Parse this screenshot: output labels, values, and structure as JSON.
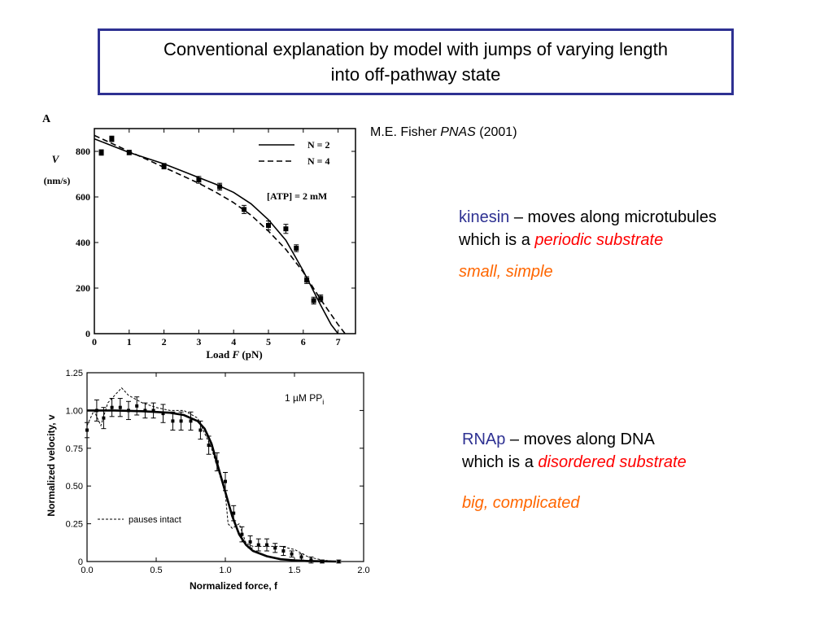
{
  "slide": {
    "title_line1": "Conventional explanation by model with jumps of varying length",
    "title_line2": "into off-pathway state",
    "citation": {
      "author": "M.E. Fisher",
      "journal": "PNAS",
      "year": "(2001)"
    },
    "kinesin": {
      "name": "kinesin",
      "desc1": " – moves along microtubules",
      "desc2_prefix": "which is a ",
      "desc2_highlight": "periodic substrate",
      "size": "small, simple"
    },
    "rnap": {
      "name": "RNAp",
      "desc1": " – moves along DNA",
      "desc2_prefix": "which is a ",
      "desc2_highlight": "disordered substrate",
      "size": "big, complicated"
    },
    "colors": {
      "frame": "#2e3192",
      "highlight": "#ff0000",
      "size_text": "#ff6600"
    }
  },
  "chart_data": [
    {
      "type": "line",
      "panel_label": "A",
      "ylabel_symbol": "V",
      "ylabel_unit": "(nm/s)",
      "xlabel_prefix": "Load ",
      "xlabel_symbol": "F",
      "xlabel_unit": " (pN)",
      "xlim": [
        0,
        7.5
      ],
      "ylim": [
        0,
        900
      ],
      "x_ticks": [
        0,
        1,
        2,
        3,
        4,
        5,
        6,
        7
      ],
      "y_ticks": [
        0,
        200,
        400,
        600,
        800
      ],
      "annotation": "[ATP] = 2 mM",
      "legend_position": "top-right",
      "series": [
        {
          "name": "N = 2",
          "style": "solid",
          "x": [
            0,
            0.5,
            1,
            1.5,
            2,
            2.5,
            3,
            3.5,
            4,
            4.5,
            5,
            5.5,
            5.8,
            6,
            6.2,
            6.5,
            6.8,
            7.0
          ],
          "y": [
            855,
            825,
            795,
            770,
            745,
            715,
            685,
            655,
            620,
            570,
            500,
            410,
            330,
            275,
            215,
            125,
            40,
            0
          ]
        },
        {
          "name": "N = 4",
          "style": "dashed",
          "x": [
            0,
            0.5,
            1,
            1.5,
            2,
            2.5,
            3,
            3.5,
            4,
            4.5,
            5,
            5.5,
            6,
            6.5,
            7.0,
            7.2
          ],
          "y": [
            870,
            835,
            800,
            765,
            730,
            695,
            660,
            620,
            575,
            520,
            450,
            370,
            270,
            150,
            40,
            0
          ]
        },
        {
          "name": "data",
          "style": "points",
          "x": [
            0.2,
            0.5,
            1.0,
            2.0,
            3.0,
            3.6,
            4.3,
            5.0,
            5.5,
            5.8,
            6.1,
            6.3,
            6.5
          ],
          "y": [
            795,
            855,
            795,
            735,
            675,
            645,
            545,
            475,
            460,
            375,
            235,
            145,
            155
          ],
          "err": [
            12,
            12,
            10,
            12,
            15,
            15,
            18,
            20,
            20,
            15,
            15,
            15,
            15
          ]
        }
      ]
    },
    {
      "type": "line",
      "ylabel": "Normalized velocity, v",
      "xlabel": "Normalized force, f",
      "xlim": [
        0,
        2.0
      ],
      "ylim": [
        0,
        1.25
      ],
      "x_ticks": [
        "0.0",
        "0.5",
        "1.0",
        "1.5",
        "2.0"
      ],
      "y_ticks": [
        "0",
        "0.25",
        "0.50",
        "0.75",
        "1.00",
        "1.25"
      ],
      "annotation_main": "1 µM PP",
      "annotation_sub": "i",
      "legend_position": "bottom-left",
      "series": [
        {
          "name": "fit",
          "style": "solid-bold",
          "x": [
            0.0,
            0.2,
            0.4,
            0.6,
            0.7,
            0.8,
            0.85,
            0.9,
            0.95,
            1.0,
            1.05,
            1.1,
            1.15,
            1.2,
            1.3,
            1.4,
            1.5,
            1.6,
            1.8
          ],
          "y": [
            1.0,
            1.0,
            0.995,
            0.985,
            0.97,
            0.93,
            0.88,
            0.78,
            0.62,
            0.46,
            0.3,
            0.18,
            0.11,
            0.07,
            0.035,
            0.015,
            0.008,
            0.003,
            0.0
          ]
        },
        {
          "name": "pauses intact",
          "style": "dashed",
          "x": [
            0.0,
            0.05,
            0.1,
            0.15,
            0.2,
            0.25,
            0.3,
            0.4,
            0.5,
            0.6,
            0.7,
            0.8,
            0.85,
            0.9,
            0.95,
            1.0,
            1.02,
            1.05,
            1.1,
            1.15,
            1.2,
            1.3,
            1.4,
            1.5,
            1.6,
            1.7,
            1.8
          ],
          "y": [
            0.9,
            1.0,
            0.9,
            1.05,
            1.1,
            1.15,
            1.1,
            1.05,
            1.02,
            1.0,
            1.0,
            0.95,
            0.85,
            0.75,
            0.6,
            0.45,
            0.25,
            0.22,
            0.25,
            0.12,
            0.1,
            0.1,
            0.1,
            0.08,
            0.03,
            0.01,
            0.0
          ]
        },
        {
          "name": "data",
          "style": "points",
          "x": [
            0.0,
            0.07,
            0.12,
            0.18,
            0.24,
            0.3,
            0.36,
            0.42,
            0.48,
            0.55,
            0.62,
            0.68,
            0.75,
            0.82,
            0.88,
            0.94,
            1.0,
            1.06,
            1.12,
            1.18,
            1.24,
            1.3,
            1.36,
            1.42,
            1.48,
            1.55,
            1.62,
            1.7,
            1.82
          ],
          "y": [
            0.87,
            1.0,
            0.95,
            1.02,
            1.02,
            1.0,
            1.03,
            1.0,
            1.0,
            0.98,
            0.93,
            0.93,
            0.93,
            0.87,
            0.77,
            0.66,
            0.53,
            0.32,
            0.18,
            0.13,
            0.11,
            0.11,
            0.09,
            0.07,
            0.05,
            0.03,
            0.01,
            0.0,
            0.0
          ],
          "err": [
            0.05,
            0.07,
            0.07,
            0.06,
            0.06,
            0.06,
            0.06,
            0.05,
            0.05,
            0.06,
            0.06,
            0.06,
            0.06,
            0.06,
            0.06,
            0.06,
            0.06,
            0.05,
            0.05,
            0.04,
            0.04,
            0.04,
            0.03,
            0.03,
            0.02,
            0.02,
            0.02,
            0.01,
            0.01
          ]
        }
      ]
    }
  ]
}
